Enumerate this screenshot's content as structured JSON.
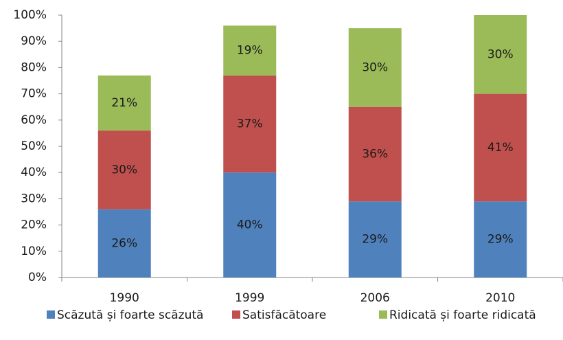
{
  "chart_data": {
    "type": "stacked_bar",
    "categories": [
      "1990",
      "1999",
      "2006",
      "2010"
    ],
    "series": [
      {
        "name": "Scăzută și foarte scăzută",
        "color": "#4f81bd",
        "values": [
          26,
          40,
          29,
          29
        ],
        "value_labels": [
          "26%",
          "40%",
          "29%",
          "29%"
        ]
      },
      {
        "name": "Satisfăcătoare",
        "color": "#c0504d",
        "values": [
          30,
          37,
          36,
          41
        ],
        "value_labels": [
          "30%",
          "37%",
          "36%",
          "41%"
        ]
      },
      {
        "name": "Ridicată și foarte ridicată",
        "color": "#9bbb59",
        "values": [
          21,
          19,
          30,
          30
        ],
        "value_labels": [
          "21%",
          "19%",
          "30%",
          "30%"
        ]
      }
    ],
    "ylim": [
      0,
      100
    ],
    "yticks": [
      {
        "value": 0,
        "label": "0%"
      },
      {
        "value": 10,
        "label": "10%"
      },
      {
        "value": 20,
        "label": "20%"
      },
      {
        "value": 30,
        "label": "30%"
      },
      {
        "value": 40,
        "label": "40%"
      },
      {
        "value": 50,
        "label": "50%"
      },
      {
        "value": 60,
        "label": "60%"
      },
      {
        "value": 70,
        "label": "70%"
      },
      {
        "value": 80,
        "label": "80%"
      },
      {
        "value": 90,
        "label": "90%"
      },
      {
        "value": 100,
        "label": "100%"
      }
    ],
    "grid": false,
    "legend": "bottom"
  }
}
